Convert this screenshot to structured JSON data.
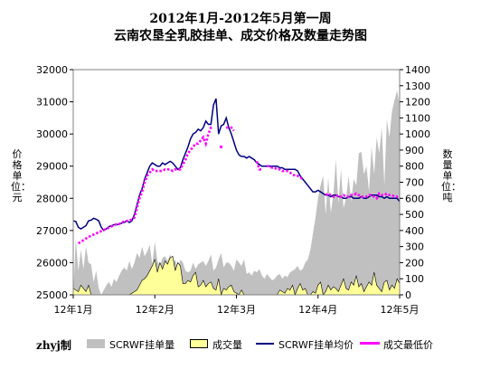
{
  "chart_data": {
    "type": "line",
    "title": "2012年1月-2012年5月第一周",
    "subtitle": "云南农垦全乳胶挂单、成交价格及数量走势图",
    "ylabel_left": "价格单位：元",
    "ylabel_right": "数量单位：吨",
    "xlim": [
      0,
      128
    ],
    "ylim_left": [
      25000,
      32000
    ],
    "ylim_right": [
      0,
      1400
    ],
    "x_ticks": [
      {
        "x": 0,
        "label": "12年1月"
      },
      {
        "x": 32,
        "label": "12年2月"
      },
      {
        "x": 64,
        "label": "12年3月"
      },
      {
        "x": 96,
        "label": "12年4月"
      },
      {
        "x": 128,
        "label": "12年5月"
      }
    ],
    "y_left_ticks": [
      25000,
      26000,
      27000,
      28000,
      29000,
      30000,
      31000,
      32000
    ],
    "y_right_ticks": [
      0,
      100,
      200,
      300,
      400,
      500,
      600,
      700,
      800,
      900,
      1000,
      1100,
      1200,
      1300,
      1400
    ],
    "grid": false,
    "legend_position": "bottom",
    "maker_label": "zhyj制",
    "series": [
      {
        "name": "SCRWF挂单量",
        "kind": "area",
        "axis": "right",
        "color": "#c0c0c0",
        "x": [
          0,
          1,
          2,
          3,
          4,
          5,
          6,
          7,
          8,
          9,
          10,
          11,
          12,
          13,
          14,
          15,
          16,
          17,
          18,
          19,
          20,
          21,
          22,
          23,
          24,
          25,
          26,
          27,
          28,
          29,
          30,
          31,
          32,
          33,
          34,
          35,
          36,
          37,
          38,
          39,
          40,
          41,
          42,
          43,
          44,
          45,
          46,
          47,
          48,
          49,
          50,
          51,
          52,
          53,
          54,
          55,
          56,
          57,
          58,
          59,
          60,
          61,
          62,
          63,
          64,
          65,
          66,
          67,
          68,
          69,
          70,
          71,
          72,
          73,
          74,
          75,
          76,
          77,
          78,
          79,
          80,
          81,
          82,
          83,
          84,
          85,
          86,
          87,
          88,
          89,
          90,
          91,
          92,
          93,
          94,
          95,
          96,
          97,
          98,
          99,
          100,
          101,
          102,
          103,
          104,
          105,
          106,
          107,
          108,
          109,
          110,
          111,
          112,
          113,
          114,
          115,
          116,
          117,
          118,
          119,
          120,
          121,
          122,
          123,
          124,
          125,
          126,
          127,
          128
        ],
        "values": [
          0,
          350,
          150,
          280,
          160,
          300,
          200,
          190,
          80,
          150,
          40,
          0,
          30,
          60,
          80,
          50,
          100,
          80,
          120,
          150,
          170,
          150,
          210,
          160,
          200,
          260,
          230,
          300,
          240,
          270,
          310,
          190,
          330,
          210,
          180,
          230,
          240,
          210,
          250,
          200,
          220,
          160,
          220,
          200,
          150,
          140,
          150,
          200,
          160,
          190,
          200,
          210,
          180,
          210,
          250,
          150,
          170,
          220,
          260,
          170,
          200,
          200,
          180,
          150,
          220,
          200,
          180,
          220,
          130,
          140,
          120,
          150,
          140,
          160,
          120,
          100,
          130,
          110,
          90,
          100,
          120,
          130,
          100,
          120,
          110,
          140,
          150,
          160,
          180,
          150,
          160,
          200,
          220,
          280,
          380,
          480,
          600,
          680,
          740,
          500,
          730,
          510,
          620,
          840,
          570,
          780,
          540,
          600,
          740,
          580,
          720,
          680,
          880,
          890,
          750,
          800,
          640,
          920,
          750,
          980,
          880,
          1040,
          680,
          1090,
          980,
          1140,
          1210,
          1270,
          1180
        ]
      },
      {
        "name": "成交量",
        "kind": "area",
        "axis": "right",
        "color": "#ffff99",
        "x": [
          0,
          2,
          3,
          4,
          5,
          6,
          7,
          8,
          9,
          10,
          11,
          12,
          13,
          14,
          15,
          16,
          17,
          18,
          19,
          20,
          21,
          22,
          23,
          24,
          25,
          26,
          27,
          28,
          29,
          30,
          31,
          32,
          33,
          34,
          35,
          36,
          37,
          38,
          39,
          40,
          41,
          42,
          43,
          44,
          45,
          46,
          47,
          48,
          49,
          50,
          51,
          52,
          53,
          54,
          55,
          56,
          57,
          58,
          59,
          60,
          61,
          62,
          63,
          64,
          65,
          66,
          67,
          68,
          69,
          70,
          71,
          72,
          73,
          74,
          75,
          76,
          77,
          78,
          79,
          80,
          81,
          82,
          83,
          84,
          85,
          86,
          87,
          88,
          89,
          90,
          91,
          92,
          93,
          94,
          95,
          96,
          97,
          98,
          99,
          100,
          101,
          102,
          103,
          104,
          105,
          106,
          107,
          108,
          109,
          110,
          111,
          112,
          113,
          114,
          115,
          116,
          117,
          118,
          119,
          120,
          121,
          122,
          123,
          124,
          125,
          126,
          127,
          128
        ],
        "values": [
          40,
          20,
          60,
          40,
          20,
          60,
          0,
          0,
          0,
          0,
          0,
          0,
          0,
          0,
          0,
          0,
          0,
          0,
          0,
          0,
          0,
          0,
          10,
          20,
          30,
          60,
          90,
          100,
          120,
          150,
          180,
          220,
          140,
          200,
          160,
          210,
          190,
          230,
          240,
          150,
          200,
          180,
          70,
          70,
          90,
          80,
          120,
          140,
          50,
          60,
          90,
          50,
          70,
          80,
          40,
          30,
          100,
          0,
          40,
          30,
          50,
          60,
          20,
          10,
          0,
          30,
          0,
          0,
          0,
          0,
          0,
          0,
          0,
          0,
          0,
          0,
          0,
          0,
          0,
          0,
          30,
          20,
          10,
          40,
          30,
          60,
          0,
          40,
          70,
          30,
          40,
          0,
          0,
          20,
          10,
          60,
          80,
          0,
          20,
          60,
          30,
          50,
          40,
          20,
          60,
          100,
          40,
          30,
          80,
          60,
          120,
          50,
          70,
          20,
          50,
          80,
          60,
          140,
          60,
          40,
          20,
          80,
          90,
          30,
          60,
          40,
          100,
          70
        ]
      },
      {
        "name": "SCRWF挂单均价",
        "kind": "line",
        "axis": "left",
        "color": "#000080",
        "x": [
          0,
          1,
          2,
          3,
          4,
          5,
          6,
          7,
          8,
          9,
          10,
          11,
          12,
          13,
          14,
          15,
          16,
          17,
          18,
          19,
          20,
          21,
          22,
          23,
          24,
          25,
          26,
          27,
          28,
          29,
          30,
          31,
          32,
          33,
          34,
          35,
          36,
          37,
          38,
          39,
          40,
          41,
          42,
          43,
          44,
          45,
          46,
          47,
          48,
          49,
          50,
          51,
          52,
          53,
          54,
          55,
          56,
          57,
          58,
          59,
          60,
          61,
          62,
          63,
          64,
          65,
          66,
          67,
          68,
          69,
          70,
          71,
          72,
          73,
          74,
          75,
          76,
          77,
          78,
          79,
          80,
          81,
          82,
          83,
          84,
          85,
          86,
          87,
          88,
          89,
          90,
          91,
          92,
          93,
          94,
          95,
          96,
          97,
          98,
          99,
          100,
          101,
          102,
          103,
          104,
          105,
          106,
          107,
          108,
          109,
          110,
          111,
          112,
          113,
          114,
          115,
          116,
          117,
          118,
          119,
          120,
          121,
          122,
          123,
          124,
          125,
          126,
          127,
          128
        ],
        "values": [
          27300,
          27280,
          27100,
          27050,
          27100,
          27150,
          27300,
          27320,
          27380,
          27350,
          27300,
          27100,
          27000,
          27050,
          27120,
          27150,
          27180,
          27180,
          27200,
          27230,
          27250,
          27300,
          27250,
          27300,
          27500,
          27800,
          28100,
          28300,
          28600,
          28800,
          29000,
          29100,
          29050,
          29000,
          29000,
          29100,
          29050,
          29100,
          29150,
          29100,
          29000,
          28900,
          28950,
          29200,
          29400,
          29600,
          29850,
          30000,
          30050,
          30150,
          30100,
          30200,
          30400,
          30300,
          30300,
          30900,
          31100,
          30000,
          30250,
          30300,
          30500,
          30200,
          30000,
          29750,
          29500,
          29350,
          29300,
          29300,
          29250,
          29300,
          29250,
          29200,
          29100,
          29050,
          29000,
          29000,
          29000,
          29000,
          29000,
          29000,
          29000,
          28950,
          28950,
          28900,
          28900,
          28900,
          28900,
          28900,
          28850,
          28700,
          28600,
          28500,
          28400,
          28300,
          28200,
          28200,
          28250,
          28200,
          28150,
          28100,
          28100,
          28050,
          28100,
          28100,
          28050,
          28050,
          28000,
          28000,
          28050,
          28050,
          28000,
          28000,
          28000,
          28050,
          28000,
          28000,
          28050,
          28100,
          28100,
          28100,
          28050,
          28050,
          28000,
          28050,
          28000,
          28000,
          28000,
          28000,
          27900
        ]
      },
      {
        "name": "成交最低价",
        "kind": "line",
        "axis": "left",
        "color": "#ff00ff",
        "x": [
          2,
          6,
          17,
          18,
          19,
          20,
          21,
          22,
          23,
          24,
          25,
          26,
          27,
          28,
          29,
          30,
          31,
          32,
          33,
          34,
          35,
          36,
          37,
          38,
          39,
          40,
          41,
          42,
          43,
          44,
          45,
          46,
          47,
          48,
          49,
          50,
          51,
          52,
          53,
          54,
          55,
          56,
          57,
          58,
          59,
          60,
          61,
          62,
          63,
          64,
          65,
          66,
          67,
          68,
          69,
          70,
          71,
          72,
          73,
          74,
          75,
          76,
          77,
          78,
          79,
          80,
          81,
          82,
          83,
          84,
          85,
          86,
          87,
          88,
          89,
          90,
          91,
          92,
          93,
          94,
          95,
          96,
          97,
          98,
          99,
          100,
          101,
          102,
          103,
          104,
          105,
          106,
          107,
          108,
          109,
          110,
          111,
          112,
          113,
          114,
          115,
          116,
          117,
          118,
          119,
          120,
          121,
          122,
          123,
          124,
          125,
          126,
          127,
          128
        ],
        "values": [
          26600,
          26800,
          27200,
          27200,
          27250,
          27280,
          27300,
          27300,
          27350,
          27400,
          27700,
          28000,
          28200,
          28500,
          28700,
          28800,
          28900,
          28850,
          28850,
          28850,
          28850,
          28900,
          28900,
          28900,
          28850,
          28900,
          28900,
          28900,
          29050,
          29200,
          29400,
          29500,
          29600,
          29700,
          29700,
          29800,
          29900,
          29700,
          30000,
          30200,
          30200,
          null,
          null,
          29600,
          null,
          30200,
          30200,
          30200,
          30100,
          null,
          null,
          null,
          null,
          null,
          null,
          null,
          null,
          29150,
          28900,
          28900,
          null,
          29000,
          29000,
          28950,
          28950,
          28900,
          28900,
          28850,
          28850,
          28850,
          28800,
          28750,
          28700,
          28700,
          28650,
          28600,
          null,
          null,
          null,
          null,
          null,
          null,
          null,
          null,
          28100,
          28150,
          28100,
          28050,
          28050,
          28100,
          28050,
          28100,
          28050,
          28050,
          28100,
          28100,
          28150,
          28100,
          28050,
          28050,
          28050,
          28100,
          28100,
          28050,
          28000,
          28150,
          28100,
          28100,
          28150,
          28100,
          28100,
          28050,
          28050,
          28050
        ]
      }
    ]
  }
}
